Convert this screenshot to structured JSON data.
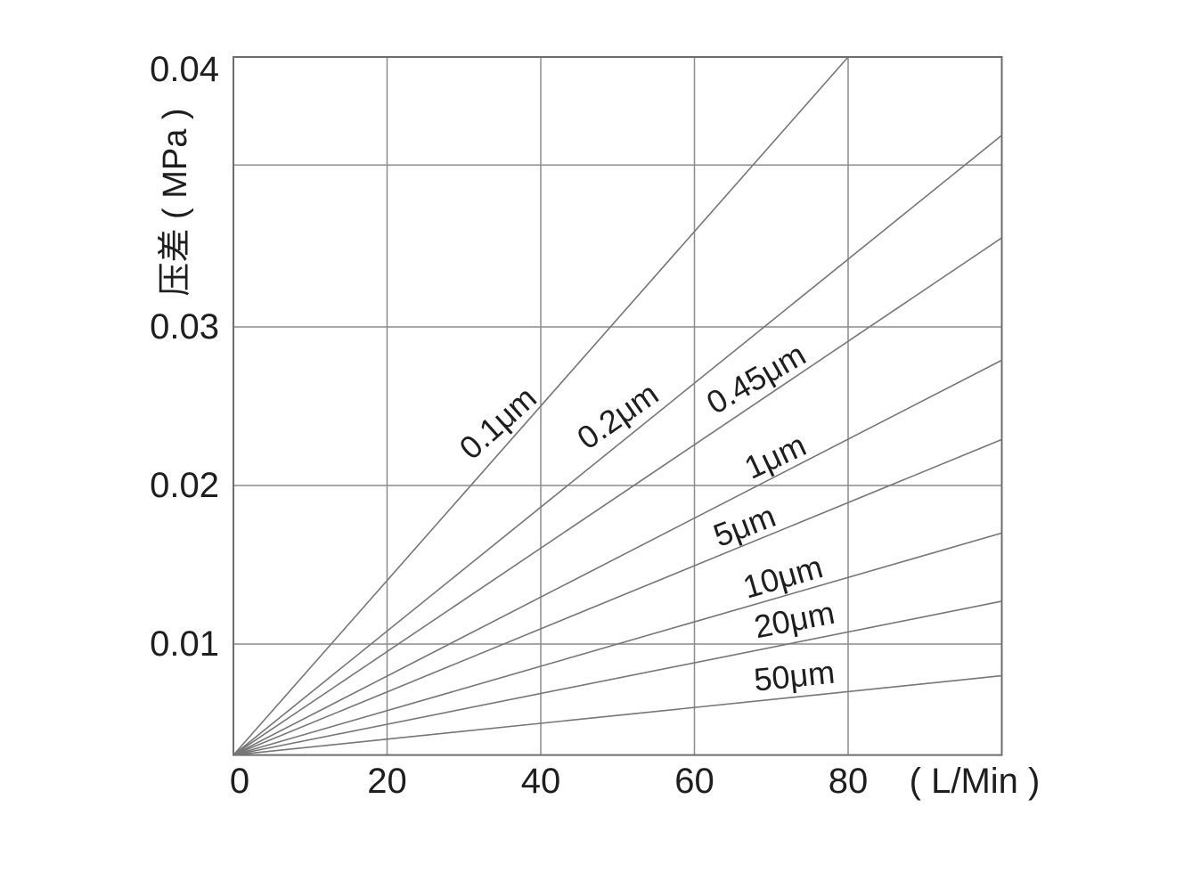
{
  "page": {
    "background": "#ffffff"
  },
  "colors": {
    "frame": "#6d6d6d",
    "grid": "#8c8c8c",
    "series_line": "#767676",
    "text": "#1e1e1e"
  },
  "chart_data": {
    "type": "line",
    "title": "",
    "xlabel": "( L/Min )",
    "ylabel": "压差 ( MPa )",
    "x_ticks": [
      0,
      20,
      40,
      60,
      80
    ],
    "y_ticks": [
      0.01,
      0.02,
      0.03,
      0.04
    ],
    "y_tick_labels": [
      "0.01",
      "0.02",
      "0.03",
      "0.04"
    ],
    "xlim": [
      0,
      100
    ],
    "ylim": [
      0.003,
      0.04
    ],
    "grid": true,
    "legend_position": "labels-along-lines",
    "x_gridlines": [
      20,
      40,
      60,
      80
    ],
    "y_gridlines": [
      0.01,
      0.02,
      0.03,
      0.036
    ],
    "series": [
      {
        "name": "0.1μm",
        "points": [
          [
            0,
            0.003
          ],
          [
            80,
            0.04
          ]
        ]
      },
      {
        "name": "0.2μm",
        "points": [
          [
            0,
            0.003
          ],
          [
            100,
            0.0371
          ]
        ]
      },
      {
        "name": "0.45μm",
        "points": [
          [
            0,
            0.003
          ],
          [
            100,
            0.0333
          ]
        ]
      },
      {
        "name": "1μm",
        "points": [
          [
            0,
            0.003
          ],
          [
            100,
            0.0279
          ]
        ]
      },
      {
        "name": "5μm",
        "points": [
          [
            0,
            0.003
          ],
          [
            100,
            0.0229
          ]
        ]
      },
      {
        "name": "10μm",
        "points": [
          [
            0,
            0.003
          ],
          [
            100,
            0.017
          ]
        ]
      },
      {
        "name": "20μm",
        "points": [
          [
            0,
            0.003
          ],
          [
            100,
            0.0127
          ]
        ]
      },
      {
        "name": "50μm",
        "points": [
          [
            0,
            0.003
          ],
          [
            100,
            0.008
          ]
        ]
      }
    ]
  }
}
